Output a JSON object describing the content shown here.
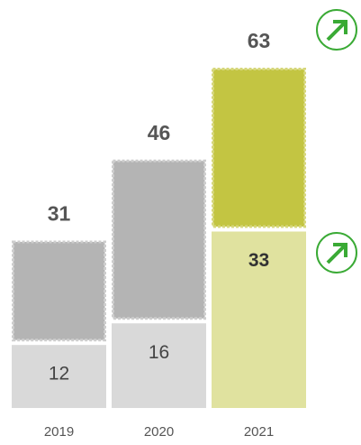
{
  "chart_data": {
    "type": "stacked_bar",
    "categories": [
      "2019",
      "2020",
      "2021"
    ],
    "series": [
      {
        "colors": [
          "#d9d9d9",
          "#d9d9d9",
          "#e0e29f"
        ],
        "values": [
          12,
          16,
          33
        ]
      },
      {
        "colors": [
          "#b4b4b4",
          "#b4b4b4",
          "#c3c542"
        ],
        "values": [
          19,
          30,
          30
        ]
      }
    ],
    "totals": [
      31,
      46,
      63
    ]
  }
}
